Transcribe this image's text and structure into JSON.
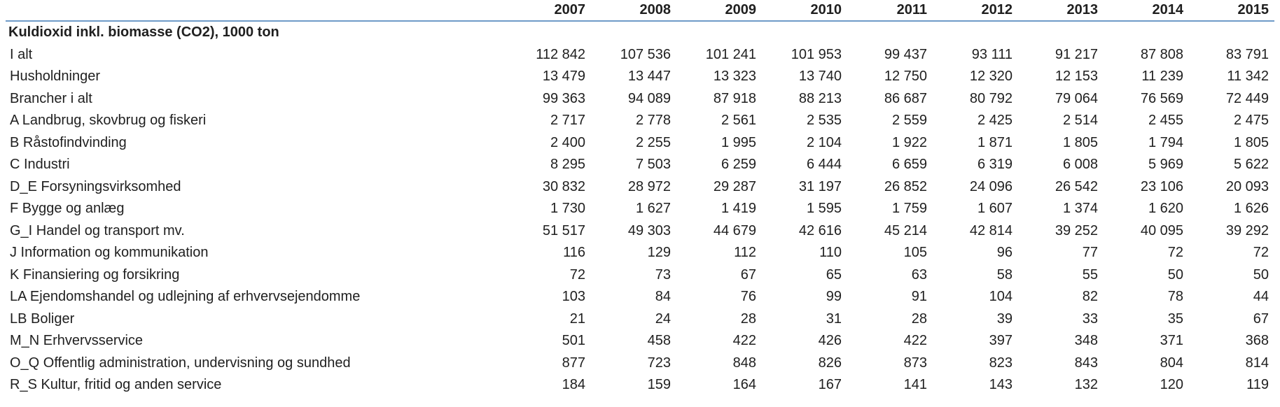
{
  "chart_data": {
    "type": "table",
    "years": [
      "2007",
      "2008",
      "2009",
      "2010",
      "2011",
      "2012",
      "2013",
      "2014",
      "2015"
    ],
    "section_title": "Kuldioxid inkl. biomasse (CO2), 1000 ton",
    "rows": [
      {
        "label": "I alt",
        "values": [
          "112 842",
          "107 536",
          "101 241",
          "101 953",
          "99 437",
          "93 111",
          "91 217",
          "87 808",
          "83 791"
        ]
      },
      {
        "label": "Husholdninger",
        "values": [
          "13 479",
          "13 447",
          "13 323",
          "13 740",
          "12 750",
          "12 320",
          "12 153",
          "11 239",
          "11 342"
        ]
      },
      {
        "label": "Brancher i alt",
        "values": [
          "99 363",
          "94 089",
          "87 918",
          "88 213",
          "86 687",
          "80 792",
          "79 064",
          "76 569",
          "72 449"
        ]
      },
      {
        "label": "A Landbrug, skovbrug og fiskeri",
        "values": [
          "2 717",
          "2 778",
          "2 561",
          "2 535",
          "2 559",
          "2 425",
          "2 514",
          "2 455",
          "2 475"
        ]
      },
      {
        "label": "B Råstofindvinding",
        "values": [
          "2 400",
          "2 255",
          "1 995",
          "2 104",
          "1 922",
          "1 871",
          "1 805",
          "1 794",
          "1 805"
        ]
      },
      {
        "label": "C Industri",
        "values": [
          "8 295",
          "7 503",
          "6 259",
          "6 444",
          "6 659",
          "6 319",
          "6 008",
          "5 969",
          "5 622"
        ]
      },
      {
        "label": "D_E Forsyningsvirksomhed",
        "values": [
          "30 832",
          "28 972",
          "29 287",
          "31 197",
          "26 852",
          "24 096",
          "26 542",
          "23 106",
          "20 093"
        ]
      },
      {
        "label": "F Bygge og anlæg",
        "values": [
          "1 730",
          "1 627",
          "1 419",
          "1 595",
          "1 759",
          "1 607",
          "1 374",
          "1 620",
          "1 626"
        ]
      },
      {
        "label": "G_I Handel og transport mv.",
        "values": [
          "51 517",
          "49 303",
          "44 679",
          "42 616",
          "45 214",
          "42 814",
          "39 252",
          "40 095",
          "39 292"
        ]
      },
      {
        "label": "J Information og kommunikation",
        "values": [
          "116",
          "129",
          "112",
          "110",
          "105",
          "96",
          "77",
          "72",
          "72"
        ]
      },
      {
        "label": "K Finansiering og forsikring",
        "values": [
          "72",
          "73",
          "67",
          "65",
          "63",
          "58",
          "55",
          "50",
          "50"
        ]
      },
      {
        "label": "LA Ejendomshandel og udlejning af erhvervsejendomme",
        "values": [
          "103",
          "84",
          "76",
          "99",
          "91",
          "104",
          "82",
          "78",
          "44"
        ]
      },
      {
        "label": "LB Boliger",
        "values": [
          "21",
          "24",
          "28",
          "31",
          "28",
          "39",
          "33",
          "35",
          "67"
        ]
      },
      {
        "label": "M_N Erhvervsservice",
        "values": [
          "501",
          "458",
          "422",
          "426",
          "422",
          "397",
          "348",
          "371",
          "368"
        ]
      },
      {
        "label": "O_Q Offentlig administration, undervisning og sundhed",
        "values": [
          "877",
          "723",
          "848",
          "826",
          "873",
          "823",
          "843",
          "804",
          "814"
        ]
      },
      {
        "label": "R_S Kultur, fritid og anden service",
        "values": [
          "184",
          "159",
          "164",
          "167",
          "141",
          "143",
          "132",
          "120",
          "119"
        ]
      }
    ]
  },
  "colors": {
    "header_rule": "#6e9bc8",
    "text": "#1f1f1f"
  }
}
